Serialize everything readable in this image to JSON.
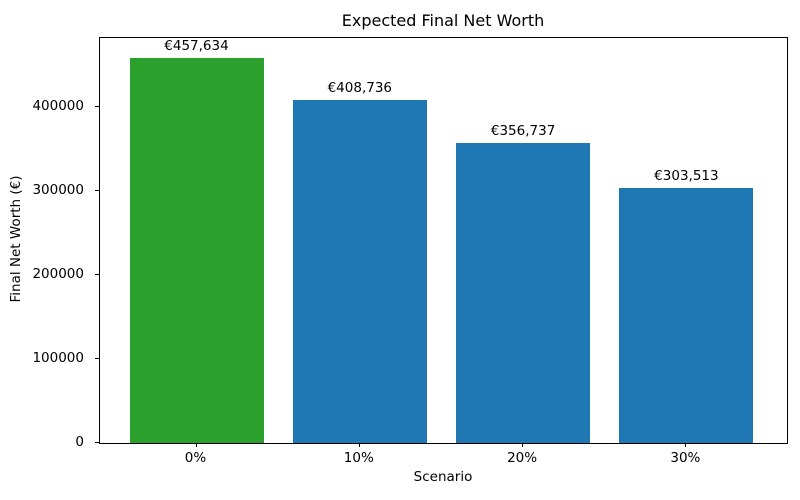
{
  "chart_data": {
    "type": "bar",
    "title": "Expected Final Net Worth",
    "xlabel": "Scenario",
    "ylabel": "Final Net Worth (€)",
    "categories": [
      "0%",
      "10%",
      "20%",
      "30%"
    ],
    "values": [
      457634,
      408736,
      356737,
      303513
    ],
    "value_labels": [
      "€457,634",
      "€408,736",
      "€356,737",
      "€303,513"
    ],
    "bar_colors": [
      "#2ca02c",
      "#1f77b4",
      "#1f77b4",
      "#1f77b4"
    ],
    "yticks": [
      0,
      100000,
      200000,
      300000,
      400000
    ],
    "ytick_labels": [
      "0",
      "100000",
      "200000",
      "300000",
      "400000"
    ],
    "ylim": [
      0,
      482000
    ],
    "grid": false,
    "legend": null
  }
}
